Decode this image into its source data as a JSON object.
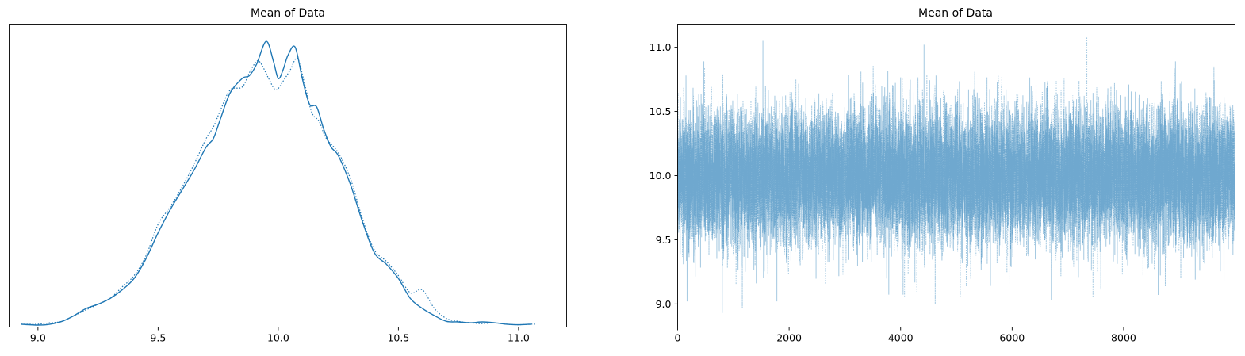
{
  "chart_data": [
    {
      "type": "line",
      "title": "Mean of Data",
      "xlabel": "",
      "ylabel": "",
      "xlim": [
        8.88,
        11.2
      ],
      "ylim": [
        0,
        1.06
      ],
      "xticks": [
        9.0,
        9.5,
        10.0,
        10.5,
        11.0
      ],
      "xtick_labels": [
        "9.0",
        "9.5",
        "10.0",
        "10.5",
        "11.0"
      ],
      "yticks_visible": false,
      "grid": false,
      "color": "#1f77b4",
      "series": [
        {
          "style": "solid",
          "x": [
            8.93,
            9.0,
            9.05,
            9.1,
            9.15,
            9.2,
            9.25,
            9.3,
            9.35,
            9.4,
            9.45,
            9.5,
            9.55,
            9.6,
            9.65,
            9.7,
            9.73,
            9.76,
            9.8,
            9.85,
            9.88,
            9.91,
            9.95,
            9.98,
            10.0,
            10.02,
            10.04,
            10.07,
            10.1,
            10.13,
            10.16,
            10.19,
            10.22,
            10.25,
            10.3,
            10.35,
            10.4,
            10.45,
            10.5,
            10.55,
            10.6,
            10.65,
            10.7,
            10.75,
            10.8,
            10.85,
            10.9,
            10.95,
            11.0,
            11.05
          ],
          "y": [
            0.01,
            0.007,
            0.01,
            0.02,
            0.04,
            0.065,
            0.08,
            0.1,
            0.13,
            0.17,
            0.24,
            0.33,
            0.41,
            0.48,
            0.55,
            0.63,
            0.66,
            0.73,
            0.82,
            0.87,
            0.88,
            0.92,
            1.0,
            0.93,
            0.87,
            0.9,
            0.95,
            0.98,
            0.87,
            0.78,
            0.77,
            0.69,
            0.63,
            0.6,
            0.5,
            0.37,
            0.26,
            0.22,
            0.17,
            0.1,
            0.065,
            0.04,
            0.02,
            0.018,
            0.015,
            0.018,
            0.015,
            0.01,
            0.008,
            0.01
          ]
        },
        {
          "style": "dotted",
          "x": [
            8.93,
            9.0,
            9.05,
            9.1,
            9.15,
            9.2,
            9.25,
            9.3,
            9.35,
            9.4,
            9.45,
            9.5,
            9.55,
            9.6,
            9.65,
            9.7,
            9.73,
            9.76,
            9.8,
            9.85,
            9.88,
            9.91,
            9.93,
            9.96,
            9.99,
            10.02,
            10.05,
            10.08,
            10.11,
            10.14,
            10.17,
            10.2,
            10.25,
            10.3,
            10.35,
            10.4,
            10.45,
            10.5,
            10.55,
            10.6,
            10.65,
            10.7,
            10.75,
            10.8,
            10.85,
            10.9,
            10.95,
            11.0,
            11.05,
            11.07
          ],
          "y": [
            0.01,
            0.01,
            0.015,
            0.02,
            0.04,
            0.06,
            0.08,
            0.1,
            0.14,
            0.18,
            0.25,
            0.36,
            0.42,
            0.49,
            0.57,
            0.66,
            0.7,
            0.76,
            0.83,
            0.84,
            0.89,
            0.93,
            0.92,
            0.87,
            0.83,
            0.86,
            0.9,
            0.94,
            0.85,
            0.75,
            0.72,
            0.66,
            0.61,
            0.52,
            0.38,
            0.27,
            0.23,
            0.18,
            0.12,
            0.13,
            0.065,
            0.03,
            0.02,
            0.015,
            0.012,
            0.015,
            0.01,
            0.008,
            0.01,
            0.01
          ]
        }
      ]
    },
    {
      "type": "line",
      "title": "Mean of Data",
      "xlabel": "",
      "ylabel": "",
      "xlim": [
        0,
        9999
      ],
      "ylim": [
        8.82,
        11.18
      ],
      "xticks": [
        0,
        2000,
        4000,
        6000,
        8000
      ],
      "xtick_labels": [
        "0",
        "2000",
        "4000",
        "6000",
        "8000"
      ],
      "yticks": [
        9.0,
        9.5,
        10.0,
        10.5,
        11.0
      ],
      "ytick_labels": [
        "9.0",
        "9.5",
        "10.0",
        "10.5",
        "11.0"
      ],
      "grid": false,
      "color": "#1f77b4",
      "alpha": 0.4,
      "series": [
        {
          "style": "solid",
          "n_draws": 10000,
          "mean": 10.0,
          "sd": 0.25,
          "extremes": [
            {
              "x": 150,
              "y": 10.78
            },
            {
              "x": 170,
              "y": 9.02
            },
            {
              "x": 470,
              "y": 10.89
            },
            {
              "x": 800,
              "y": 8.93
            },
            {
              "x": 1530,
              "y": 11.05
            },
            {
              "x": 1780,
              "y": 9.02
            },
            {
              "x": 4420,
              "y": 11.02
            },
            {
              "x": 8620,
              "y": 9.07
            },
            {
              "x": 8930,
              "y": 10.89
            },
            {
              "x": 9800,
              "y": 9.17
            }
          ]
        },
        {
          "style": "dotted",
          "n_draws": 10000,
          "mean": 10.0,
          "sd": 0.25,
          "extremes": [
            {
              "x": 1160,
              "y": 8.97
            },
            {
              "x": 4070,
              "y": 9.06
            },
            {
              "x": 4620,
              "y": 9.0
            },
            {
              "x": 7340,
              "y": 11.08
            },
            {
              "x": 7450,
              "y": 9.05
            },
            {
              "x": 9620,
              "y": 10.85
            }
          ]
        }
      ]
    }
  ]
}
